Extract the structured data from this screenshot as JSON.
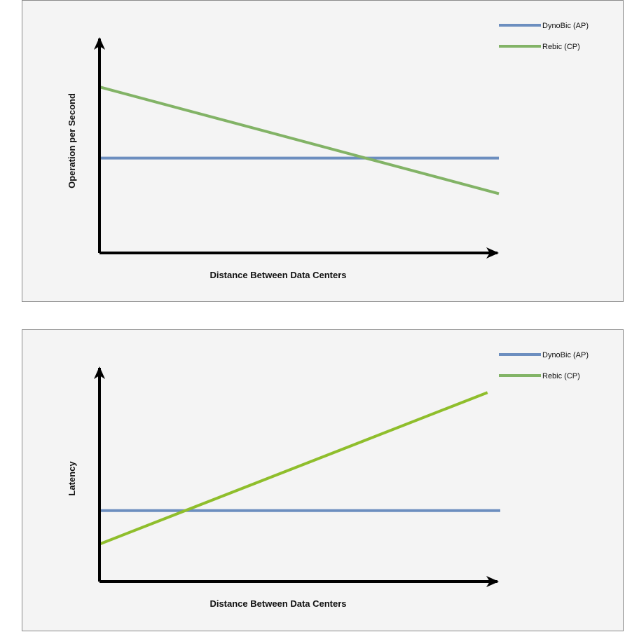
{
  "chart_data": [
    {
      "type": "line",
      "title": "",
      "xlabel": "Distance Between Data Centers",
      "ylabel": "Operation per Second",
      "xlim": [
        0,
        1
      ],
      "ylim": [
        0,
        1
      ],
      "grid": false,
      "legend_position": "top-right",
      "series": [
        {
          "name": "DynoBic (AP)",
          "color": "#6c8ebf",
          "x": [
            0,
            1
          ],
          "y": [
            0.48,
            0.48
          ]
        },
        {
          "name": "Rebic (CP)",
          "color": "#82b366",
          "x": [
            0,
            1
          ],
          "y": [
            0.84,
            0.3
          ]
        }
      ]
    },
    {
      "type": "line",
      "title": "",
      "xlabel": "Distance Between Data Centers",
      "ylabel": "Latency",
      "xlim": [
        0,
        1
      ],
      "ylim": [
        0,
        1
      ],
      "grid": false,
      "legend_position": "top-right",
      "series": [
        {
          "name": "DynoBic (AP)",
          "color": "#6c8ebf",
          "x": [
            0,
            1
          ],
          "y": [
            0.36,
            0.36
          ]
        },
        {
          "name": "Rebic (CP)",
          "color": "#8fbe2c",
          "x": [
            0,
            0.968
          ],
          "y": [
            0.19,
            0.96
          ]
        }
      ]
    }
  ]
}
